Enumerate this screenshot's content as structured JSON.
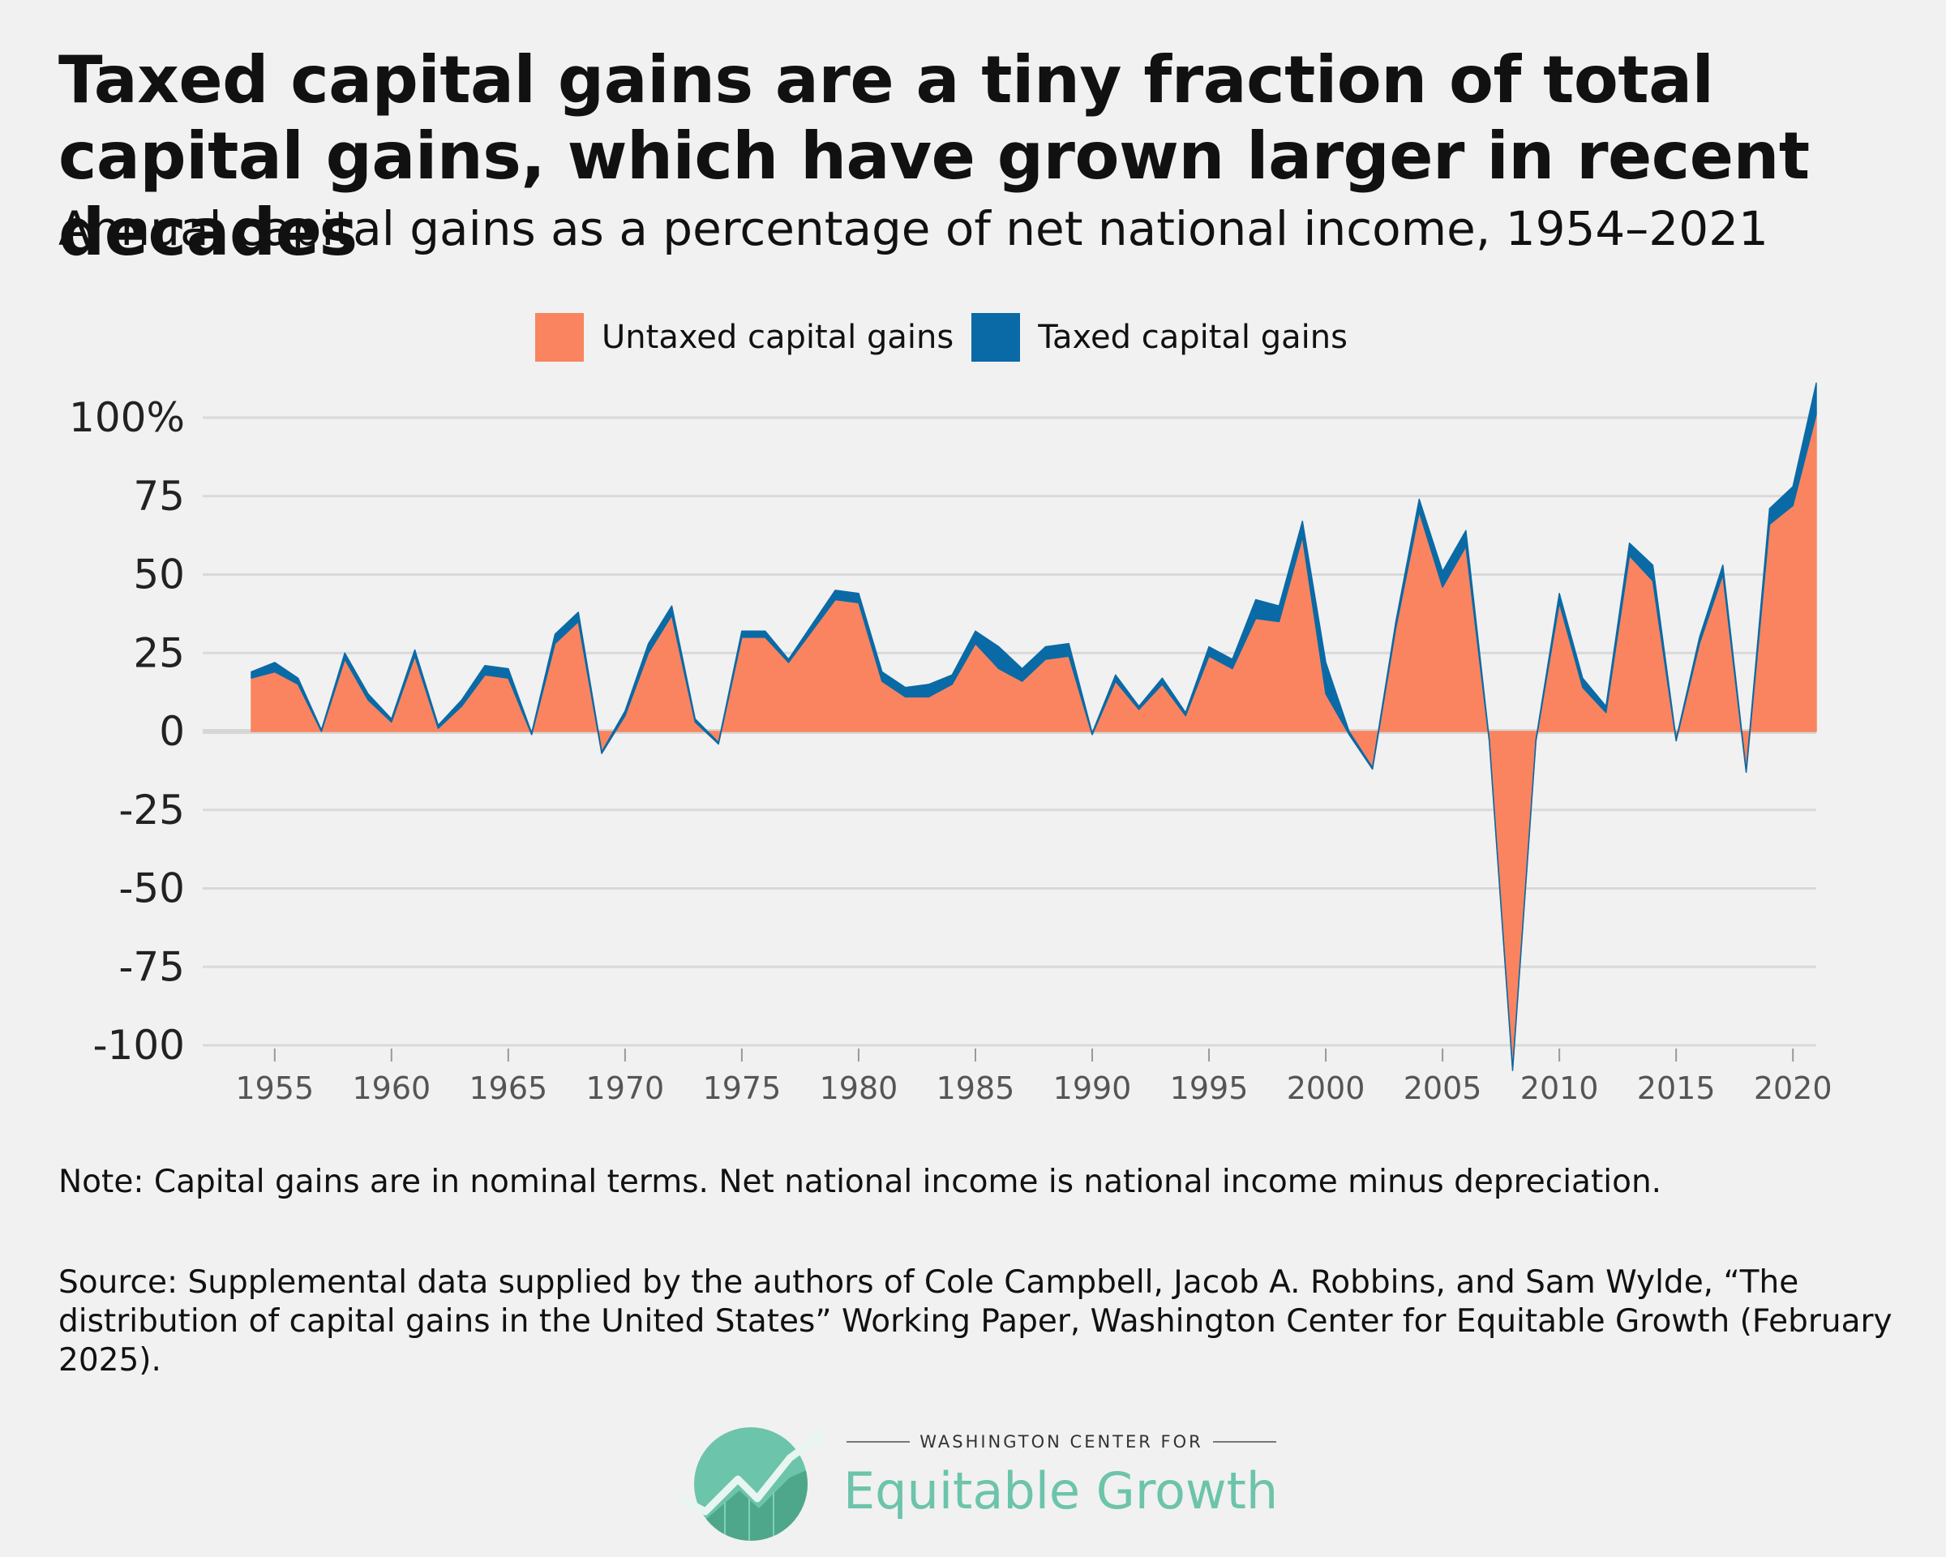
{
  "title": "Taxed capital gains are a tiny fraction of total capital gains, which have grown larger in recent decades",
  "subtitle": "Annual capital gains as a percentage of net national income, 1954–2021",
  "legend": [
    {
      "label": "Untaxed capital gains",
      "color": "#f9845f"
    },
    {
      "label": "Taxed capital gains",
      "color": "#0a6aa6"
    }
  ],
  "note": "Note: Capital gains are in nominal terms. Net national income is national income minus depreciation.",
  "source": "Source: Supplemental data supplied by the authors of Cole Campbell, Jacob A. Robbins, and Sam Wylde, “The distribution of capital gains in the United States” Working Paper, Washington Center for Equitable Growth (February 2025).",
  "logo": {
    "top_text": "WASHINGTON CENTER FOR",
    "name": "Equitable Growth",
    "icon": "equitable-growth-logo-icon"
  },
  "chart_data": {
    "type": "area",
    "stacked": true,
    "x": [
      1954,
      1955,
      1956,
      1957,
      1958,
      1959,
      1960,
      1961,
      1962,
      1963,
      1964,
      1965,
      1966,
      1967,
      1968,
      1969,
      1970,
      1971,
      1972,
      1973,
      1974,
      1975,
      1976,
      1977,
      1978,
      1979,
      1980,
      1981,
      1982,
      1983,
      1984,
      1985,
      1986,
      1987,
      1988,
      1989,
      1990,
      1991,
      1992,
      1993,
      1994,
      1995,
      1996,
      1997,
      1998,
      1999,
      2000,
      2001,
      2002,
      2003,
      2004,
      2005,
      2006,
      2007,
      2008,
      2009,
      2010,
      2011,
      2012,
      2013,
      2014,
      2015,
      2016,
      2017,
      2018,
      2019,
      2020,
      2021
    ],
    "series": [
      {
        "name": "Untaxed capital gains",
        "color": "#f9845f",
        "values": [
          17,
          19,
          15,
          0,
          23,
          10,
          3,
          24,
          1,
          8,
          18,
          17,
          -1,
          28,
          35,
          -7,
          5,
          25,
          37,
          3,
          -4,
          30,
          30,
          22,
          32,
          42,
          41,
          16,
          11,
          11,
          15,
          28,
          20,
          16,
          23,
          24,
          -1,
          16,
          7,
          15,
          5,
          24,
          20,
          36,
          35,
          62,
          12,
          -1,
          -12,
          33,
          70,
          46,
          59,
          -3,
          -108,
          -3,
          41,
          14,
          6,
          56,
          48,
          -3,
          28,
          50,
          -13,
          66,
          72,
          101
        ]
      },
      {
        "name": "Taxed capital gains",
        "color": "#0a6aa6",
        "values": [
          2,
          3,
          2,
          0.5,
          2,
          2,
          1,
          2,
          1,
          2,
          3,
          3,
          0.5,
          3,
          3,
          0.5,
          1.5,
          3,
          3,
          1,
          0.5,
          2,
          2,
          1,
          2,
          3,
          3,
          3,
          3,
          4,
          3,
          4,
          7,
          4,
          4,
          4,
          0.5,
          2,
          1,
          2,
          1,
          3,
          3,
          6,
          5,
          5,
          10,
          1,
          0.5,
          2,
          4,
          5,
          5,
          0.5,
          0.5,
          0.5,
          3,
          3,
          2,
          4,
          5,
          0.5,
          2,
          3,
          0.5,
          5,
          6,
          10
        ]
      }
    ],
    "x_ticks": [
      1955,
      1960,
      1965,
      1970,
      1975,
      1980,
      1985,
      1990,
      1995,
      2000,
      2005,
      2010,
      2015,
      2020
    ],
    "y_ticks": [
      100,
      75,
      50,
      25,
      0,
      -25,
      -50,
      -75,
      -100
    ],
    "y_tick_labels": [
      "100%",
      "75",
      "50",
      "25",
      "0",
      "-25",
      "-50",
      "-75",
      "-100"
    ],
    "xlim": [
      1954,
      2021
    ],
    "ylim": [
      -110,
      112
    ],
    "grid": "horizontal",
    "legend_position": "top-center"
  }
}
